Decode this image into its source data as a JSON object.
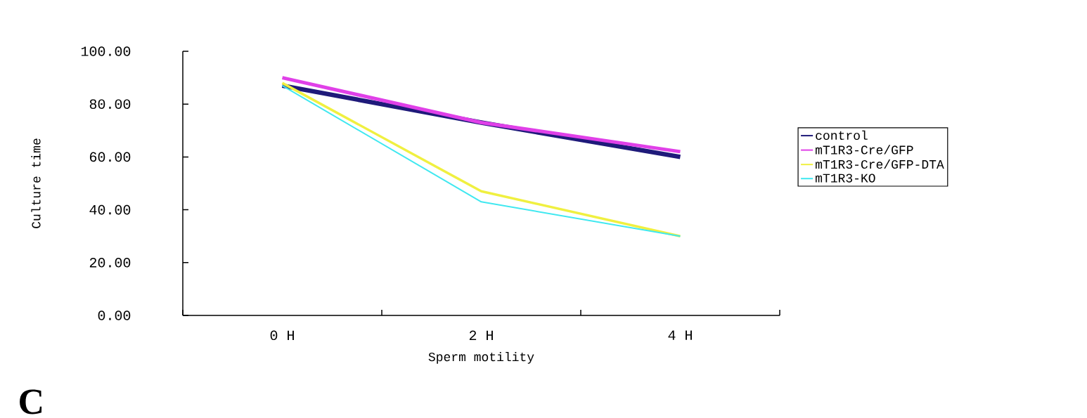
{
  "chart_data": {
    "type": "line",
    "xlabel": "Sperm motility",
    "ylabel": "Culture time",
    "categories": [
      "0 H",
      "2 H",
      "4 H"
    ],
    "series": [
      {
        "name": "control",
        "color": "#1f1a7a",
        "values": [
          87,
          73,
          60
        ]
      },
      {
        "name": "mT1R3-Cre/GFP",
        "color": "#e040e8",
        "values": [
          90,
          73,
          62
        ]
      },
      {
        "name": "mT1R3-Cre/GFP-DTA",
        "color": "#f0f040",
        "values": [
          88,
          47,
          30
        ]
      },
      {
        "name": "mT1R3-KO",
        "color": "#40e8f0",
        "values": [
          87,
          43,
          30
        ]
      }
    ],
    "ylim": [
      0,
      100
    ],
    "yticks": [
      {
        "value": 0,
        "label": "0.00"
      },
      {
        "value": 20,
        "label": "20.00"
      },
      {
        "value": 40,
        "label": "40.00"
      },
      {
        "value": 60,
        "label": "60.00"
      },
      {
        "value": 80,
        "label": "80.00"
      },
      {
        "value": 100,
        "label": "100.00"
      }
    ],
    "legend": "right",
    "grid": false,
    "annotations": [
      "C"
    ]
  }
}
